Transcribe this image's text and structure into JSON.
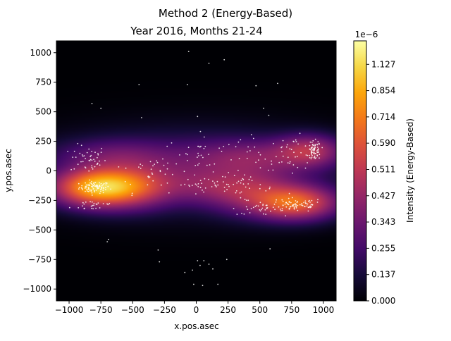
{
  "chart_data": {
    "type": "heatmap",
    "suptitle": "Method 2 (Energy-Based)",
    "title": "Year 2016, Months 21-24",
    "xlabel": "x.pos.asec",
    "ylabel": "y.pos.asec",
    "xlim": [
      -1100,
      1100
    ],
    "ylim": [
      -1100,
      1100
    ],
    "x_ticks": [
      -1000,
      -750,
      -500,
      -250,
      0,
      250,
      500,
      750,
      1000
    ],
    "y_ticks": [
      -1000,
      -750,
      -500,
      -250,
      0,
      250,
      500,
      750,
      1000
    ],
    "colormap": "inferno",
    "colorbar": {
      "label": "Intensity (Energy-Based)",
      "offset_text": "1e−6",
      "ticks": [
        "0.000",
        "0.137",
        "0.255",
        "0.343",
        "0.427",
        "0.511",
        "0.590",
        "0.714",
        "0.854",
        "1.127"
      ]
    },
    "density_blobs": [
      {
        "x": -780,
        "y": -140,
        "sx": 210,
        "sy": 95,
        "w": 1.0
      },
      {
        "x": -520,
        "y": -130,
        "sx": 220,
        "sy": 110,
        "w": 0.5
      },
      {
        "x": 780,
        "y": -270,
        "sx": 200,
        "sy": 85,
        "w": 0.72
      },
      {
        "x": 480,
        "y": -200,
        "sx": 230,
        "sy": 110,
        "w": 0.3
      },
      {
        "x": 880,
        "y": 170,
        "sx": 160,
        "sy": 80,
        "w": 0.42
      },
      {
        "x": 450,
        "y": 110,
        "sx": 300,
        "sy": 95,
        "w": 0.22
      },
      {
        "x": 0,
        "y": 0,
        "sx": 600,
        "sy": 180,
        "w": 0.2
      },
      {
        "x": -650,
        "y": 120,
        "sx": 280,
        "sy": 90,
        "w": 0.18
      },
      {
        "x": 150,
        "y": -130,
        "sx": 260,
        "sy": 90,
        "w": 0.18
      }
    ],
    "point_clusters": [
      {
        "x": -800,
        "y": -140,
        "sx": 60,
        "sy": 25,
        "n": 90
      },
      {
        "x": -850,
        "y": 100,
        "sx": 70,
        "sy": 60,
        "n": 45
      },
      {
        "x": -800,
        "y": -290,
        "sx": 90,
        "sy": 25,
        "n": 25
      },
      {
        "x": -350,
        "y": 0,
        "sx": 150,
        "sy": 90,
        "n": 40
      },
      {
        "x": 40,
        "y": 130,
        "sx": 130,
        "sy": 90,
        "n": 35
      },
      {
        "x": 120,
        "y": -110,
        "sx": 120,
        "sy": 25,
        "n": 35
      },
      {
        "x": 400,
        "y": -150,
        "sx": 110,
        "sy": 80,
        "n": 35
      },
      {
        "x": 500,
        "y": -330,
        "sx": 90,
        "sy": 20,
        "n": 25
      },
      {
        "x": 780,
        "y": -290,
        "sx": 110,
        "sy": 30,
        "n": 80
      },
      {
        "x": 930,
        "y": 170,
        "sx": 25,
        "sy": 40,
        "n": 70
      },
      {
        "x": 750,
        "y": 150,
        "sx": 110,
        "sy": 70,
        "n": 40
      },
      {
        "x": 400,
        "y": 200,
        "sx": 80,
        "sy": 70,
        "n": 15
      }
    ],
    "outlier_points": [
      [
        -820,
        570
      ],
      [
        -750,
        530
      ],
      [
        -450,
        730
      ],
      [
        -430,
        450
      ],
      [
        -60,
        1010
      ],
      [
        -70,
        730
      ],
      [
        100,
        910
      ],
      [
        220,
        940
      ],
      [
        10,
        460
      ],
      [
        470,
        720
      ],
      [
        530,
        530
      ],
      [
        640,
        740
      ],
      [
        570,
        470
      ],
      [
        -690,
        -580
      ],
      [
        -700,
        -600
      ],
      [
        -300,
        -670
      ],
      [
        -290,
        -770
      ],
      [
        -90,
        -860
      ],
      [
        -30,
        -840
      ],
      [
        10,
        -760
      ],
      [
        30,
        -800
      ],
      [
        60,
        -760
      ],
      [
        100,
        -790
      ],
      [
        130,
        -830
      ],
      [
        240,
        -750
      ],
      [
        -20,
        -960
      ],
      [
        50,
        -970
      ],
      [
        170,
        -960
      ],
      [
        580,
        -660
      ]
    ]
  }
}
